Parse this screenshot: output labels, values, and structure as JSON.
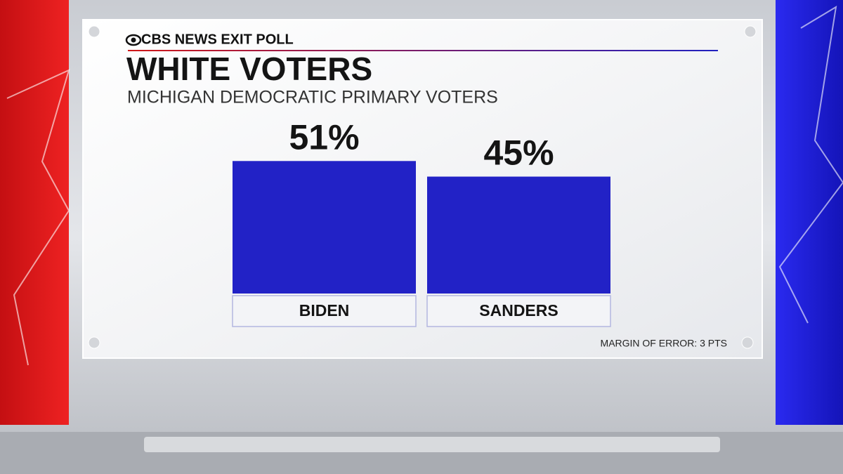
{
  "chart_data": {
    "type": "bar",
    "brand": "CBS NEWS EXIT POLL",
    "title": "WHITE VOTERS",
    "subtitle": "MICHIGAN DEMOCRATIC PRIMARY VOTERS",
    "categories": [
      "BIDEN",
      "SANDERS"
    ],
    "values": [
      51,
      45
    ],
    "value_labels": [
      "51%",
      "45%"
    ],
    "color": "#2222c6",
    "footnote": "MARGIN OF ERROR: 3 PTS"
  }
}
